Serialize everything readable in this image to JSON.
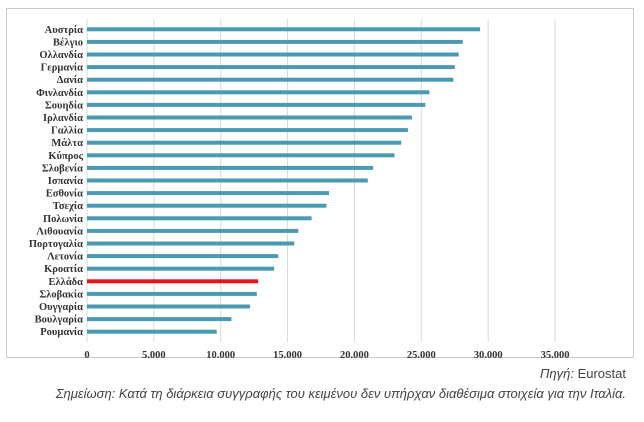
{
  "chart_data": {
    "type": "bar",
    "orientation": "horizontal",
    "categories": [
      "Αυστρία",
      "Βέλγιο",
      "Ολλανδία",
      "Γερμανία",
      "Δανία",
      "Φινλανδία",
      "Σουηδία",
      "Ιρλανδία",
      "Γαλλία",
      "Μάλτα",
      "Κύπρος",
      "Σλοβενία",
      "Ισπανία",
      "Εσθονία",
      "Τσεχία",
      "Πολωνία",
      "Λιθουανία",
      "Πορτογαλία",
      "Λετονία",
      "Κροατία",
      "Ελλάδα",
      "Σλοβακία",
      "Ουγγαρία",
      "Βουλγαρία",
      "Ρουμανία"
    ],
    "values": [
      29400,
      28100,
      27800,
      27500,
      27400,
      25600,
      25300,
      24300,
      24000,
      23500,
      23000,
      21400,
      21000,
      18100,
      17900,
      16800,
      15800,
      15500,
      14300,
      14000,
      12800,
      12700,
      12200,
      10800,
      9700
    ],
    "highlight": "Ελλάδα",
    "colors": {
      "bar": "#4a9ab2",
      "highlight": "#e8141b",
      "grid": "#d9d9d9"
    },
    "xlim": [
      0,
      35000
    ],
    "xticks": [
      0,
      5000,
      10000,
      15000,
      20000,
      25000,
      30000,
      35000
    ],
    "xtick_labels": [
      "0",
      "5.000",
      "10.000",
      "15.000",
      "20.000",
      "25.000",
      "30.000",
      "35.000"
    ],
    "grid": true,
    "title": "",
    "xlabel": "",
    "ylabel": ""
  },
  "source": {
    "label": "Πηγή:",
    "value": "Eurostat"
  },
  "note": "Σημείωση: Κατά τη διάρκεια συγγραφής του κειμένου δεν υπήρχαν διαθέσιμα στοιχεία για την Ιταλία."
}
